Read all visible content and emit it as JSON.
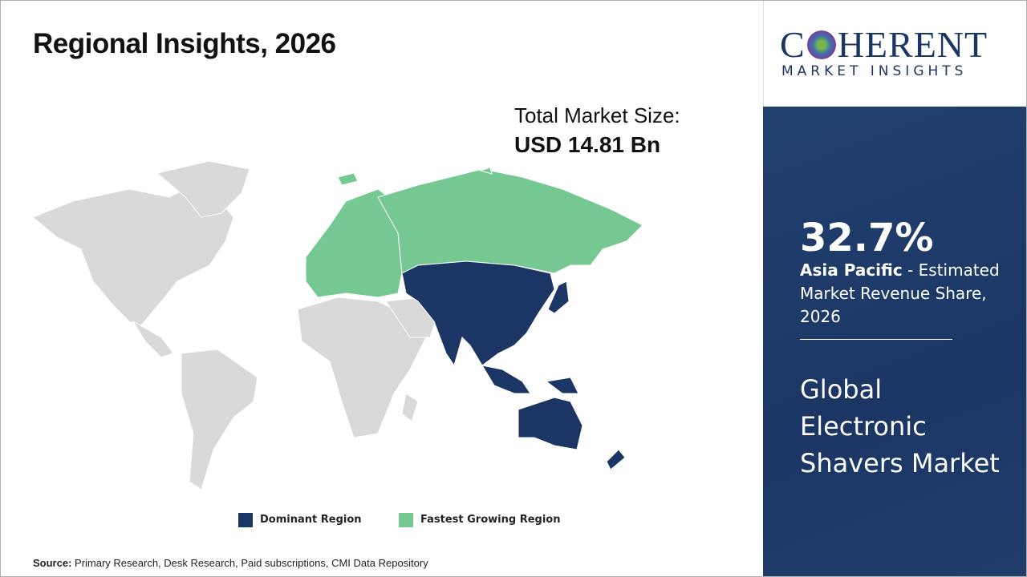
{
  "header": {
    "title": "Regional Insights, 2026"
  },
  "market_size": {
    "label": "Total Market Size:",
    "value": "USD 14.81 Bn"
  },
  "logo": {
    "first": "C",
    "rest": "HERENT",
    "tagline": "MARKET INSIGHTS"
  },
  "highlight": {
    "share": "32.7%",
    "region": "Asia Pacific",
    "description": " - Estimated Market Revenue Share, 2026",
    "market": "Global Electronic Shavers Market"
  },
  "legend": [
    {
      "label": "Dominant Region",
      "color": "#1b3664"
    },
    {
      "label": "Fastest Growing Region",
      "color": "#76c893"
    }
  ],
  "source": {
    "label": "Source:",
    "text": "Primary Research, Desk Research, Paid subscriptions, CMI Data Repository"
  }
}
